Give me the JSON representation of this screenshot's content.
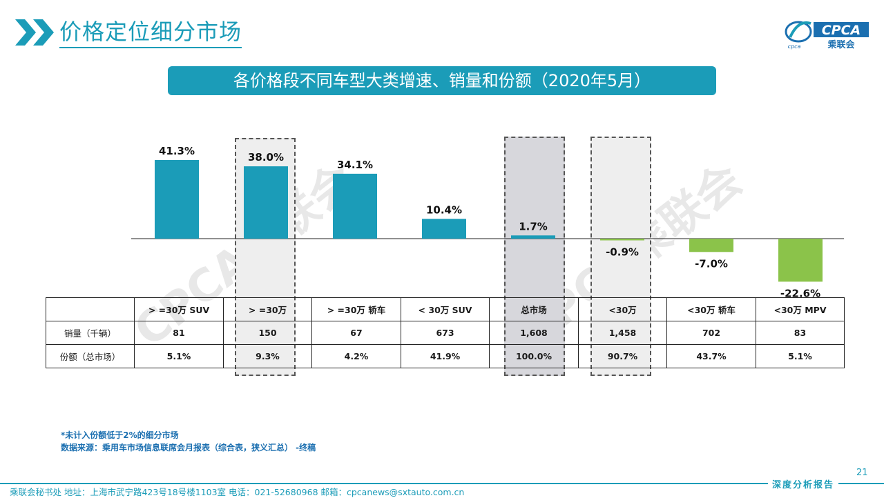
{
  "header": {
    "title": "价格定位细分市场"
  },
  "logo": {
    "text": "CPCA",
    "subtext": "乘联会",
    "small": "cpca"
  },
  "banner": {
    "text": "各价格段不同车型大类增速、销量和份额（2020年5月）"
  },
  "watermark": "CPCA乘联会",
  "colors": {
    "accent": "#1b9cb8",
    "positive": "#1b9cb8",
    "negative": "#8bc34a"
  },
  "chart_data": {
    "type": "bar",
    "categories": [
      ">=30万 SUV",
      ">=30万",
      ">=30万 轿车",
      "<30万 SUV",
      "总市场",
      "<30万",
      "<30万 轿车",
      "<30万 MPV"
    ],
    "values": [
      41.3,
      38.0,
      34.1,
      10.4,
      1.7,
      -0.9,
      -7.0,
      -22.6
    ],
    "labels": [
      "41.3%",
      "38.0%",
      "34.1%",
      "10.4%",
      "1.7%",
      "-0.9%",
      "-7.0%",
      "-22.6%"
    ],
    "highlighted": [
      1,
      4,
      5
    ]
  },
  "table": {
    "headers": [
      "",
      "> =30万 SUV",
      "> =30万",
      "> =30万 轿车",
      "< 30万 SUV",
      "总市场",
      "<30万",
      "<30万 轿车",
      "<30万 MPV"
    ],
    "rows": [
      [
        "销量（千辆）",
        "81",
        "150",
        "67",
        "673",
        "1,608",
        "1,458",
        "702",
        "83"
      ],
      [
        "份额（总市场）",
        "5.1%",
        "9.3%",
        "4.2%",
        "41.9%",
        "100.0%",
        "90.7%",
        "43.7%",
        "5.1%"
      ]
    ]
  },
  "footnote": {
    "line1": "*未计入份额低于2%的细分市场",
    "line2": "数据来源：乘用车市场信息联席会月报表（综合表，狭义汇总） -终稿"
  },
  "page_number": "21",
  "footer": {
    "text": "乘联会秘书处   地址：上海市武宁路423号18号楼1103室   电话：021-52680968   邮箱：cpcanews@sxtauto.com.cn",
    "right": "深度分析报告"
  }
}
